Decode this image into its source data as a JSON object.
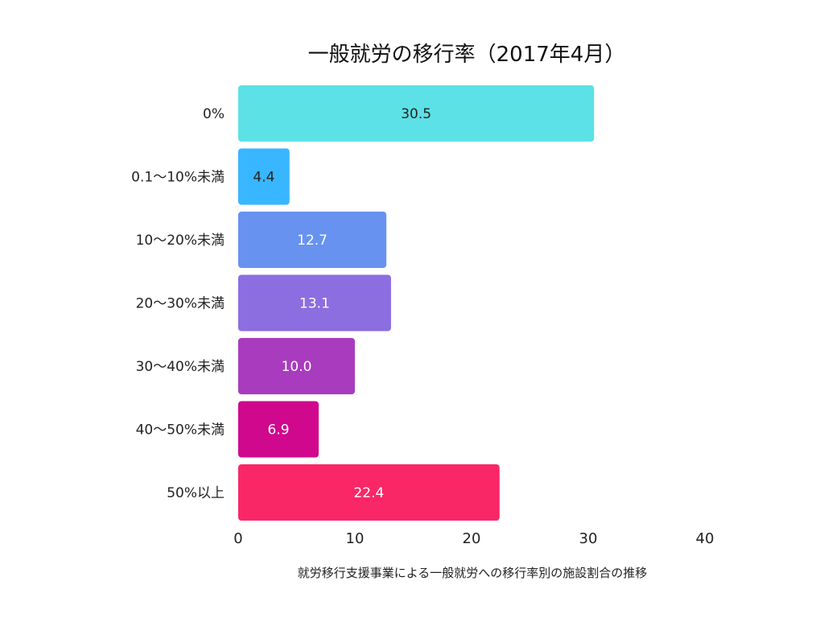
{
  "chart_data": {
    "type": "bar",
    "orientation": "horizontal",
    "title": "一般就労の移行率（2017年4月）",
    "xlabel": "就労移行支援事業による一般就労への移行率別の施設割合の推移",
    "ylabel": "",
    "categories": [
      "0%",
      "0.1〜10%未満",
      "10〜20%未満",
      "20〜30%未満",
      "30〜40%未満",
      "40〜50%未満",
      "50%以上"
    ],
    "values": [
      30.5,
      4.4,
      12.7,
      13.1,
      10.0,
      6.9,
      22.4
    ],
    "value_labels": [
      "30.5",
      "4.4",
      "12.7",
      "13.1",
      "10.0",
      "6.9",
      "22.4"
    ],
    "colors": [
      "#5ce1e6",
      "#38b6ff",
      "#6792f0",
      "#8c6ee0",
      "#a93cbe",
      "#d0088e",
      "#fa2767"
    ],
    "value_label_colors": [
      "#222222",
      "#222222",
      "#ffffff",
      "#ffffff",
      "#ffffff",
      "#ffffff",
      "#ffffff"
    ],
    "xlim": [
      0,
      40
    ],
    "xticks": [
      "0",
      "10",
      "20",
      "30",
      "40"
    ],
    "xtick_values": [
      0,
      10,
      20,
      30,
      40
    ],
    "grid": false,
    "legend": "none"
  }
}
